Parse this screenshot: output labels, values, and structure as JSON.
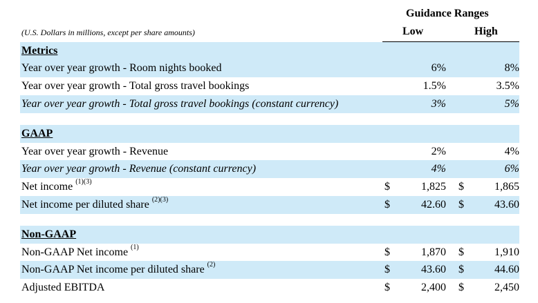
{
  "header": {
    "title": "Guidance Ranges",
    "low": "Low",
    "high": "High",
    "note": "(U.S. Dollars in millions, except per share amounts)"
  },
  "sections": [
    {
      "title": "Metrics",
      "rows": [
        {
          "label": "Year over year growth - Room nights booked",
          "sup": "",
          "dollar": false,
          "low": "6%",
          "high": "8%",
          "italic": false,
          "shaded": true
        },
        {
          "label": "Year over year growth - Total gross travel bookings",
          "sup": "",
          "dollar": false,
          "low": "1.5%",
          "high": "3.5%",
          "italic": false,
          "shaded": false
        },
        {
          "label": "Year over year growth - Total gross travel bookings (constant currency)",
          "sup": "",
          "dollar": false,
          "low": "3%",
          "high": "5%",
          "italic": true,
          "shaded": true
        }
      ]
    },
    {
      "title": "GAAP",
      "rows": [
        {
          "label": "Year over year growth - Revenue",
          "sup": "",
          "dollar": false,
          "low": "2%",
          "high": "4%",
          "italic": false,
          "shaded": false
        },
        {
          "label": "Year over year growth - Revenue (constant currency)",
          "sup": "",
          "dollar": false,
          "low": "4%",
          "high": "6%",
          "italic": true,
          "shaded": true
        },
        {
          "label": "Net income",
          "sup": "(1)(3)",
          "dollar": true,
          "low": "1,825",
          "high": "1,865",
          "italic": false,
          "shaded": false
        },
        {
          "label": "Net income per diluted share",
          "sup": "(2)(3)",
          "dollar": true,
          "low": "42.60",
          "high": "43.60",
          "italic": false,
          "shaded": true
        }
      ]
    },
    {
      "title": "Non-GAAP",
      "rows": [
        {
          "label": "Non-GAAP Net income",
          "sup": "(1)",
          "dollar": true,
          "low": "1,870",
          "high": "1,910",
          "italic": false,
          "shaded": false
        },
        {
          "label": "Non-GAAP Net income per diluted share",
          "sup": "(2)",
          "dollar": true,
          "low": "43.60",
          "high": "44.60",
          "italic": false,
          "shaded": true
        },
        {
          "label": "Adjusted EBITDA",
          "sup": "",
          "dollar": true,
          "low": "2,400",
          "high": "2,450",
          "italic": false,
          "shaded": false
        }
      ]
    }
  ],
  "dollar_sign": "$"
}
